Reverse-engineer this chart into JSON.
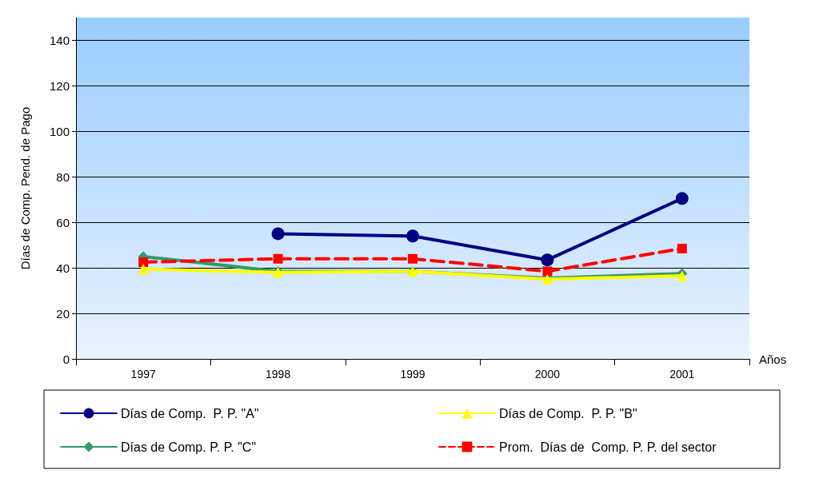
{
  "chart_data": {
    "type": "line",
    "xlabel": "Años",
    "ylabel": "Días de Comp. Pend. de Pago",
    "categories": [
      "1997",
      "1998",
      "1999",
      "2000",
      "2001"
    ],
    "series": [
      {
        "name": "Días de Comp.  P. P. \"A\"",
        "color": "#000080",
        "marker": "circle",
        "line_style": "solid",
        "values": [
          null,
          55,
          54,
          43.5,
          70.5
        ]
      },
      {
        "name": "Días de Comp.  P. P. \"B\"",
        "color": "#ffff00",
        "marker": "triangle",
        "line_style": "solid",
        "values": [
          39.5,
          38,
          38.5,
          35,
          36.5
        ]
      },
      {
        "name": "Días de Comp. P. P. \"C\"",
        "color": "#339966",
        "marker": "diamond",
        "line_style": "solid",
        "values": [
          45,
          38.5,
          38.5,
          35.5,
          37.5
        ]
      },
      {
        "name": "Prom.  Días de  Comp. P. P. del sector",
        "color": "#ff0000",
        "marker": "square",
        "line_style": "dashed",
        "values": [
          42.5,
          44,
          44,
          38.5,
          48.5
        ]
      }
    ],
    "ylim": [
      0,
      150
    ],
    "yticks": [
      0,
      20,
      40,
      60,
      80,
      100,
      120,
      140
    ],
    "grid": "y",
    "legend": "bottom"
  }
}
